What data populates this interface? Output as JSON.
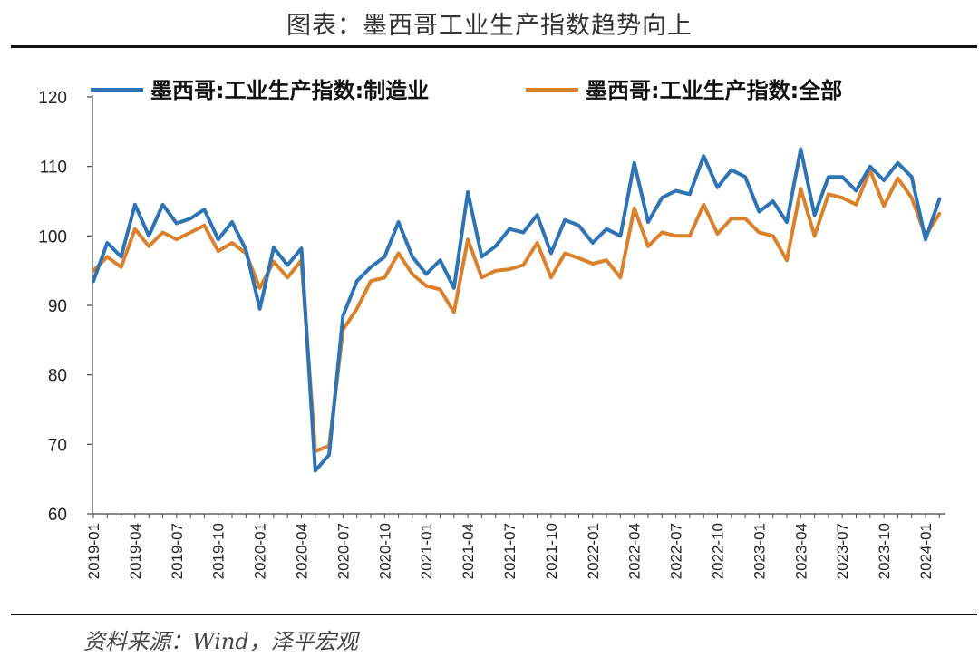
{
  "title": "图表：墨西哥工业生产指数趋势向上",
  "source": "资料来源：Wind，泽平宏观",
  "colors": {
    "manufacturing": "#2E74B5",
    "total": "#D9822B"
  },
  "chart_data": {
    "type": "line",
    "title": "",
    "xlabel": "",
    "ylabel": "",
    "ylim": [
      60,
      120
    ],
    "yticks": [
      60,
      70,
      80,
      90,
      100,
      110,
      120
    ],
    "grid": false,
    "legend": "top",
    "x": [
      "2019-01",
      "2019-02",
      "2019-03",
      "2019-04",
      "2019-05",
      "2019-06",
      "2019-07",
      "2019-08",
      "2019-09",
      "2019-10",
      "2019-11",
      "2019-12",
      "2020-01",
      "2020-02",
      "2020-03",
      "2020-04",
      "2020-05",
      "2020-06",
      "2020-07",
      "2020-08",
      "2020-09",
      "2020-10",
      "2020-11",
      "2020-12",
      "2021-01",
      "2021-02",
      "2021-03",
      "2021-04",
      "2021-05",
      "2021-06",
      "2021-07",
      "2021-08",
      "2021-09",
      "2021-10",
      "2021-11",
      "2021-12",
      "2022-01",
      "2022-02",
      "2022-03",
      "2022-04",
      "2022-05",
      "2022-06",
      "2022-07",
      "2022-08",
      "2022-09",
      "2022-10",
      "2022-11",
      "2022-12",
      "2023-01",
      "2023-02",
      "2023-03",
      "2023-04",
      "2023-05",
      "2023-06",
      "2023-07",
      "2023-08",
      "2023-09",
      "2023-10",
      "2023-11",
      "2023-12",
      "2024-01",
      "2024-02"
    ],
    "xtick_labels": [
      "2019-01",
      "2019-04",
      "2019-07",
      "2019-10",
      "2020-01",
      "2020-04",
      "2020-07",
      "2020-10",
      "2021-01",
      "2021-04",
      "2021-07",
      "2021-10",
      "2022-01",
      "2022-04",
      "2022-07",
      "2022-10",
      "2023-01",
      "2023-04",
      "2023-07",
      "2023-10",
      "2024-01"
    ],
    "series": [
      {
        "name": "墨西哥:工业生产指数:制造业",
        "values": [
          93.5,
          99.0,
          97.0,
          104.5,
          100.0,
          104.5,
          101.8,
          102.5,
          103.8,
          99.5,
          102.0,
          98.0,
          89.5,
          98.3,
          95.8,
          98.2,
          66.2,
          68.5,
          88.5,
          93.5,
          95.5,
          97.0,
          102.0,
          97.0,
          94.5,
          96.5,
          92.5,
          106.3,
          97.0,
          98.5,
          101.0,
          100.5,
          103.0,
          97.5,
          102.3,
          101.5,
          99.0,
          101.0,
          100.0,
          110.5,
          102.0,
          105.5,
          106.5,
          106.0,
          111.5,
          107.0,
          109.5,
          108.5,
          103.5,
          105.0,
          102.0,
          112.5,
          103.0,
          108.5,
          108.5,
          106.5,
          110.0,
          108.0,
          110.5,
          108.5,
          99.5,
          105.3
        ]
      },
      {
        "name": "墨西哥:工业生产指数:全部",
        "values": [
          95.0,
          97.0,
          95.5,
          101.0,
          98.5,
          100.5,
          99.5,
          100.5,
          101.5,
          97.8,
          99.0,
          97.5,
          92.5,
          96.3,
          94.0,
          96.5,
          69.0,
          69.8,
          86.5,
          89.5,
          93.5,
          94.0,
          97.5,
          94.5,
          92.8,
          92.3,
          89.0,
          99.5,
          94.0,
          95.0,
          95.2,
          95.8,
          99.0,
          94.0,
          97.5,
          96.8,
          96.0,
          96.5,
          94.0,
          104.0,
          98.5,
          100.5,
          100.0,
          100.0,
          104.5,
          100.3,
          102.5,
          102.5,
          100.5,
          100.0,
          96.5,
          106.8,
          100.0,
          106.0,
          105.5,
          104.5,
          109.5,
          104.3,
          108.3,
          105.5,
          100.0,
          103.2
        ]
      }
    ]
  }
}
